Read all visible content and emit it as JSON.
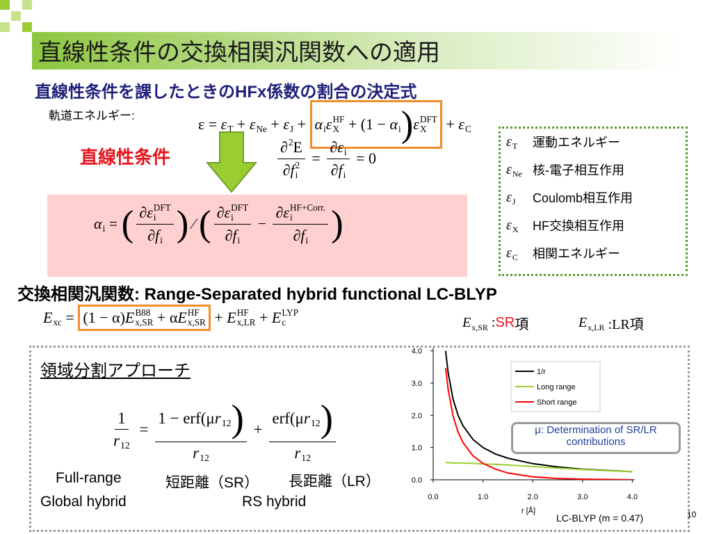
{
  "title": "直線性条件の交換相関汎関数への適用",
  "subtitle": "直線性条件を課したときのHFx係数の割合の決定式",
  "orbital_energy_label": "軌道エネルギー:",
  "eq1": [
    "ε",
    " = ",
    {
      "b": "ε",
      "sub": "T"
    },
    " + ",
    {
      "b": "ε",
      "sub": "Ne"
    },
    " + ",
    {
      "b": "ε",
      "sub": "J"
    },
    " + ",
    {
      "box": [
        {
          "b": "α",
          "sub": "i"
        },
        {
          "b": "ε",
          "sub": "X",
          "sup": "HF"
        },
        " + (1 − ",
        {
          "b": "α",
          "sub": "i"
        },
        ")",
        {
          "b": "ε",
          "sub": "X",
          "sup": "DFT"
        }
      ]
    },
    " + ",
    {
      "b": "ε",
      "sub": "C"
    }
  ],
  "legend": [
    {
      "symbol": [
        {
          "b": "ε",
          "sub": "T"
        }
      ],
      "text": "運動エネルギー"
    },
    {
      "symbol": [
        {
          "b": "ε",
          "sub": "Ne"
        }
      ],
      "text": "核-電子相互作用"
    },
    {
      "symbol": [
        {
          "b": "ε",
          "sub": "J"
        }
      ],
      "text": "Coulomb相互作用"
    },
    {
      "symbol": [
        {
          "b": "ε",
          "sub": "X"
        }
      ],
      "text": "HF交換相互作用"
    },
    {
      "symbol": [
        {
          "b": "ε",
          "sub": "C"
        }
      ],
      "text": "相関エネルギー"
    }
  ],
  "linearity_label": "直線性条件",
  "eq2": [
    {
      "num": [
        {
          "b": "∂",
          "sup": "2"
        },
        "E"
      ],
      "den": [
        "∂",
        {
          "b": "f",
          "sub": "i",
          "sup": "2"
        }
      ]
    },
    " = ",
    {
      "num": [
        "∂",
        {
          "b": "ε",
          "sub": "i"
        }
      ],
      "den": [
        "∂",
        {
          "b": "f",
          "sub": "i"
        }
      ]
    },
    " = 0"
  ],
  "eq3": [
    {
      "b": "α",
      "sub": "i"
    },
    " = ",
    "(",
    {
      "num": [
        "∂",
        {
          "b": "ε",
          "sub": "i",
          "sup": "DFT"
        }
      ],
      "den": [
        "∂",
        {
          "b": "f",
          "sub": "i"
        }
      ]
    },
    ")",
    " ∕ ",
    "(",
    {
      "num": [
        "∂",
        {
          "b": "ε",
          "sub": "i",
          "sup": "DFT"
        }
      ],
      "den": [
        "∂",
        {
          "b": "f",
          "sub": "i"
        }
      ]
    },
    " − ",
    {
      "num": [
        "∂",
        {
          "b": "ε",
          "sub": "i",
          "sup": "HF+Corr."
        }
      ],
      "den": [
        "∂",
        {
          "b": "f",
          "sub": "i"
        }
      ]
    },
    ")"
  ],
  "section2": "交換相関汎関数: Range-Separated hybrid functional LC-BLYP",
  "eq4": [
    {
      "b": "E",
      "sub": "xc"
    },
    " = ",
    {
      "box": [
        "(1 − α)",
        {
          "b": "E",
          "sub": "x,SR",
          "sup": "B88"
        },
        " + α",
        {
          "b": "E",
          "sub": "x,SR",
          "sup": "HF"
        }
      ]
    },
    " + ",
    {
      "b": "E",
      "sub": "x,LR",
      "sup": "HF"
    },
    " + ",
    {
      "b": "E",
      "sub": "c",
      "sup": "LYP"
    }
  ],
  "sr_term": [
    {
      "b": "E",
      "sub": "x,SR"
    },
    " :",
    "SR",
    "項"
  ],
  "lr_term": [
    {
      "b": "E",
      "sub": "x,LR"
    },
    " :LR項"
  ],
  "section3": "領域分割アプローチ",
  "eq5": [
    {
      "num": [
        "1"
      ],
      "den": [
        {
          "b": "r",
          "sub": "12"
        }
      ]
    },
    " = ",
    {
      "num": [
        "1 − erf(μ",
        {
          "b": "r",
          "sub": "12"
        },
        ")"
      ],
      "den": [
        {
          "b": "r",
          "sub": "12"
        }
      ]
    },
    " + ",
    {
      "num": [
        "erf(μ",
        {
          "b": "r",
          "sub": "12"
        },
        ")"
      ],
      "den": [
        {
          "b": "r",
          "sub": "12"
        }
      ]
    }
  ],
  "labels": {
    "full_range": "Full-range",
    "global_hybrid": "Global hybrid",
    "sr": "短距離（SR）",
    "lr": "長距離（LR）",
    "rs_hybrid": "RS hybrid"
  },
  "chart": {
    "type": "line",
    "x_label": "r [Å]",
    "x": [
      0.25,
      0.3,
      0.4,
      0.5,
      0.6,
      0.8,
      1.0,
      1.25,
      1.5,
      2.0,
      2.5,
      3.0,
      3.5,
      4.0
    ],
    "series": [
      {
        "name": "1/r",
        "color": "#000000",
        "values": [
          4,
          3.33,
          2.5,
          2,
          1.67,
          1.25,
          1,
          0.8,
          0.67,
          0.5,
          0.4,
          0.33,
          0.29,
          0.25
        ]
      },
      {
        "name": "Long range",
        "color": "#9acd32",
        "values": [
          0.53,
          0.53,
          0.52,
          0.52,
          0.52,
          0.51,
          0.49,
          0.48,
          0.46,
          0.41,
          0.36,
          0.32,
          0.28,
          0.25
        ]
      },
      {
        "name": "Short range",
        "color": "#ff0000",
        "values": [
          3.47,
          2.81,
          1.98,
          1.48,
          1.15,
          0.74,
          0.51,
          0.33,
          0.21,
          0.09,
          0.04,
          0.02,
          0.01,
          0
        ]
      }
    ],
    "xlim": [
      0,
      4.05
    ],
    "ylim": [
      0,
      4.1
    ],
    "xticks": [
      {
        "value": 0,
        "label": "0.0"
      },
      {
        "value": 1,
        "label": "1.0"
      },
      {
        "value": 2,
        "label": "2.0"
      },
      {
        "value": 3,
        "label": "3.0"
      },
      {
        "value": 4,
        "label": "4.0"
      }
    ],
    "yticks": [
      {
        "value": 0,
        "label": "0.0"
      },
      {
        "value": 1,
        "label": "1.0"
      },
      {
        "value": 2,
        "label": "2.0"
      },
      {
        "value": 3,
        "label": "3.0"
      },
      {
        "value": 4,
        "label": "4.0"
      }
    ],
    "annotation": "μ: Determination of SR/LR contributions"
  },
  "footnote": "LC-BLYP (m = 0.47)",
  "page_number": "10"
}
